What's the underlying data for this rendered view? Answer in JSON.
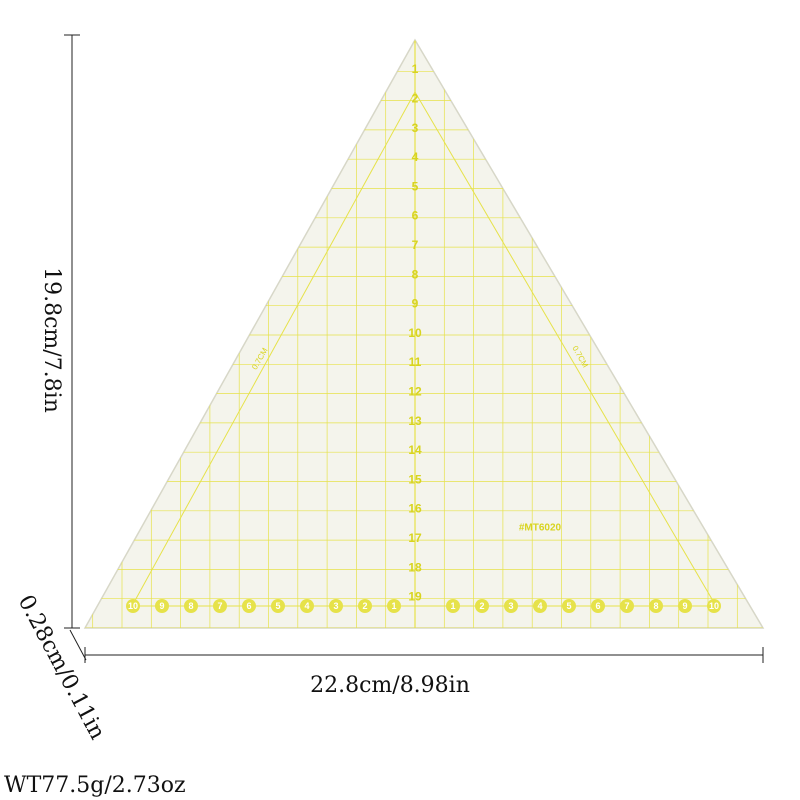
{
  "dimensions": {
    "height": "19.8cm/7.8in",
    "width": "22.8cm/8.98in",
    "thickness": "0.28cm/0.11in",
    "weight": "WT77.5g/2.73oz"
  },
  "ruler": {
    "vertical_numbers": [
      "1",
      "2",
      "3",
      "4",
      "5",
      "6",
      "7",
      "8",
      "9",
      "10",
      "11",
      "12",
      "13",
      "14",
      "15",
      "16",
      "17",
      "18",
      "19"
    ],
    "bottom_left_numbers": [
      "10",
      "9",
      "8",
      "7",
      "6",
      "5",
      "4",
      "3",
      "2",
      "1"
    ],
    "bottom_right_numbers": [
      "1",
      "2",
      "3",
      "4",
      "5",
      "6",
      "7",
      "8",
      "9",
      "10"
    ],
    "seam_label_left": "0.7CM",
    "seam_label_right": "0.7CM",
    "model": "#MT6020"
  }
}
